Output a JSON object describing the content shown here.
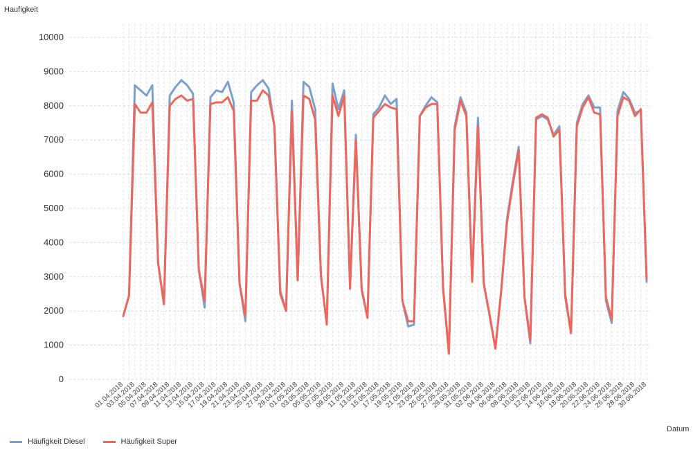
{
  "chart_data": {
    "type": "line",
    "ylabel": "Haufigkeit",
    "xlabel": "Datum",
    "ylim": [
      0,
      10000
    ],
    "yticks": [
      0,
      1000,
      2000,
      3000,
      4000,
      5000,
      6000,
      7000,
      8000,
      9000,
      10000
    ],
    "grid": true,
    "legend_position": "bottom-left",
    "x": [
      "01.04.2018",
      "02.04.2018",
      "03.04.2018",
      "04.04.2018",
      "05.04.2018",
      "06.04.2018",
      "07.04.2018",
      "08.04.2018",
      "09.04.2018",
      "10.04.2018",
      "11.04.2018",
      "12.04.2018",
      "13.04.2018",
      "14.04.2018",
      "15.04.2018",
      "16.04.2018",
      "17.04.2018",
      "18.04.2018",
      "19.04.2018",
      "20.04.2018",
      "21.04.2018",
      "22.04.2018",
      "23.04.2018",
      "24.04.2018",
      "25.04.2018",
      "26.04.2018",
      "27.04.2018",
      "28.04.2018",
      "29.04.2018",
      "30.04.2018",
      "01.05.2018",
      "02.05.2018",
      "03.05.2018",
      "04.05.2018",
      "05.05.2018",
      "06.05.2018",
      "07.05.2018",
      "08.05.2018",
      "09.05.2018",
      "10.05.2018",
      "11.05.2018",
      "12.05.2018",
      "13.05.2018",
      "14.05.2018",
      "15.05.2018",
      "16.05.2018",
      "17.05.2018",
      "18.05.2018",
      "19.05.2018",
      "20.05.2018",
      "21.05.2018",
      "22.05.2018",
      "23.05.2018",
      "24.05.2018",
      "25.05.2018",
      "26.05.2018",
      "27.05.2018",
      "28.05.2018",
      "29.05.2018",
      "30.05.2018",
      "31.05.2018",
      "01.06.2018",
      "02.06.2018",
      "03.06.2018",
      "04.06.2018",
      "05.06.2018",
      "06.06.2018",
      "07.06.2018",
      "08.06.2018",
      "09.06.2018",
      "10.06.2018",
      "11.06.2018",
      "12.06.2018",
      "13.06.2018",
      "14.06.2018",
      "15.06.2018",
      "16.06.2018",
      "17.06.2018",
      "18.06.2018",
      "19.06.2018",
      "20.06.2018",
      "21.06.2018",
      "22.06.2018",
      "23.06.2018",
      "24.06.2018",
      "25.06.2018",
      "26.06.2018",
      "27.06.2018",
      "28.06.2018",
      "29.06.2018",
      "30.06.2018"
    ],
    "tick_labels": [
      "01.04.2018",
      "03.04.2018",
      "05.04.2018",
      "07.04.2018",
      "09.04.2018",
      "11.04.2018",
      "13.04.2018",
      "15.04.2018",
      "17.04.2018",
      "19.04.2018",
      "21.04.2018",
      "23.04.2018",
      "25.04.2018",
      "27.04.2018",
      "29.04.2018",
      "01.05.2018",
      "03.05.2018",
      "05.05.2018",
      "07.05.2018",
      "09.05.2018",
      "11.05.2018",
      "13.05.2018",
      "15.05.2018",
      "17.05.2018",
      "19.05.2018",
      "21.05.2018",
      "23.05.2018",
      "25.05.2018",
      "27.05.2018",
      "29.05.2018",
      "31.05.2018",
      "02.06.2018",
      "04.06.2018",
      "06.06.2018",
      "08.06.2018",
      "10.06.2018",
      "12.06.2018",
      "14.06.2018",
      "16.06.2018",
      "18.06.2018",
      "20.06.2018",
      "22.06.2018",
      "24.06.2018",
      "26.06.2018",
      "28.06.2018",
      "30.06.2018"
    ],
    "series": [
      {
        "name": "Häufigkeit Diesel",
        "color": "#7b9fce",
        "values": [
          1850,
          2450,
          8600,
          8450,
          8300,
          8600,
          3400,
          2200,
          8300,
          8550,
          8750,
          8600,
          8350,
          3200,
          2100,
          8250,
          8450,
          8400,
          8700,
          8100,
          2800,
          1700,
          8400,
          8600,
          8750,
          8500,
          7400,
          2600,
          2000,
          8150,
          2900,
          8700,
          8550,
          7900,
          3000,
          1650,
          8650,
          7900,
          8450,
          2700,
          7150,
          2600,
          1800,
          7750,
          7950,
          8300,
          8050,
          8200,
          2300,
          1550,
          1600,
          7700,
          8000,
          8250,
          8100,
          2700,
          800,
          7400,
          8250,
          7800,
          2900,
          7650,
          2800,
          1850,
          900,
          2600,
          4700,
          5800,
          6800,
          2400,
          1050,
          7600,
          7700,
          7600,
          7150,
          7400,
          2400,
          1350,
          7500,
          8050,
          8300,
          7950,
          7950,
          2300,
          1650,
          7850,
          8400,
          8200,
          7800,
          7850,
          2850
        ]
      },
      {
        "name": "Häufigkeit Super",
        "color": "#ee675c",
        "values": [
          1850,
          2450,
          8050,
          7800,
          7800,
          8100,
          3400,
          2200,
          8000,
          8200,
          8300,
          8150,
          8200,
          3200,
          2300,
          8050,
          8100,
          8100,
          8250,
          7850,
          2800,
          1850,
          8150,
          8150,
          8450,
          8300,
          7400,
          2500,
          2000,
          7850,
          2900,
          8300,
          8200,
          7600,
          3050,
          1600,
          8300,
          7700,
          8300,
          2650,
          7000,
          2650,
          1800,
          7650,
          7850,
          8050,
          7950,
          7900,
          2300,
          1700,
          1700,
          7700,
          7950,
          8050,
          8050,
          2650,
          750,
          7300,
          8150,
          7700,
          2850,
          7400,
          2800,
          1900,
          900,
          2600,
          4600,
          5700,
          6700,
          2400,
          1150,
          7650,
          7750,
          7650,
          7100,
          7300,
          2500,
          1350,
          7400,
          7950,
          8250,
          7800,
          7750,
          2400,
          1750,
          7700,
          8250,
          8150,
          7700,
          7900,
          2950
        ]
      }
    ]
  },
  "legend": {
    "items": [
      {
        "label": "Häufigkeit Diesel",
        "color": "#7b9fce"
      },
      {
        "label": "Häufigkeit Super",
        "color": "#ee675c"
      }
    ]
  }
}
